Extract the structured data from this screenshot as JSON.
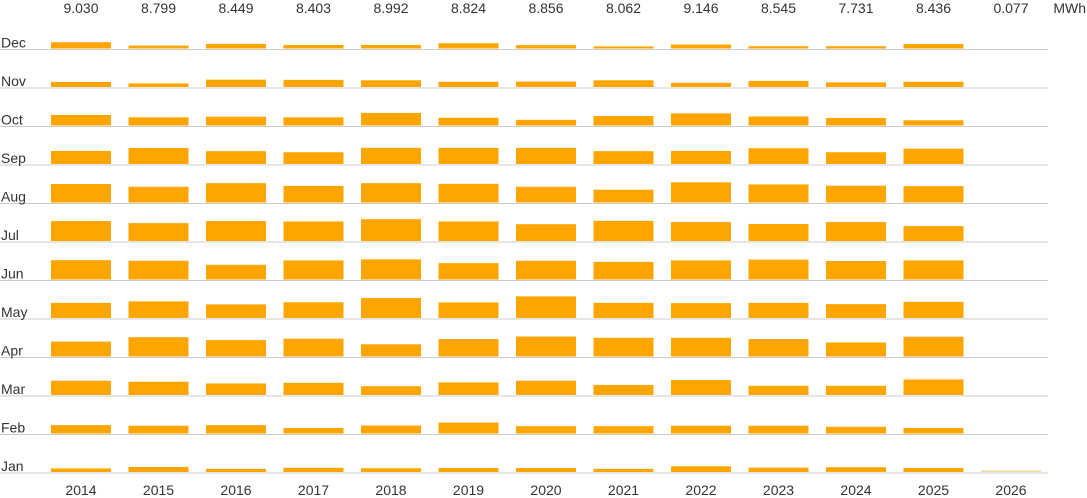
{
  "chart_data": {
    "type": "bar",
    "unit": "MWh",
    "months": [
      "Jan",
      "Feb",
      "Mar",
      "Apr",
      "May",
      "Jun",
      "Jul",
      "Aug",
      "Sep",
      "Oct",
      "Nov",
      "Dec"
    ],
    "years": [
      "2014",
      "2015",
      "2016",
      "2017",
      "2018",
      "2019",
      "2020",
      "2021",
      "2022",
      "2023",
      "2024",
      "2025",
      "2026"
    ],
    "year_totals": [
      "9.030",
      "8.799",
      "8.449",
      "8.403",
      "8.992",
      "8.824",
      "8.856",
      "8.062",
      "9.146",
      "8.545",
      "7.731",
      "8.436",
      "0.077"
    ],
    "series": [
      {
        "month": "Jan",
        "values": [
          0.17,
          0.24,
          0.15,
          0.2,
          0.18,
          0.19,
          0.19,
          0.15,
          0.27,
          0.21,
          0.23,
          0.19,
          0.05
        ]
      },
      {
        "month": "Feb",
        "values": [
          0.4,
          0.37,
          0.4,
          0.26,
          0.38,
          0.52,
          0.35,
          0.35,
          0.37,
          0.37,
          0.32,
          0.26,
          null
        ]
      },
      {
        "month": "Mar",
        "values": [
          0.68,
          0.63,
          0.55,
          0.58,
          0.42,
          0.6,
          0.68,
          0.48,
          0.71,
          0.44,
          0.44,
          0.74,
          null
        ]
      },
      {
        "month": "Apr",
        "values": [
          0.71,
          0.92,
          0.78,
          0.85,
          0.58,
          0.83,
          0.95,
          0.89,
          0.89,
          0.83,
          0.67,
          0.94,
          null
        ]
      },
      {
        "month": "May",
        "values": [
          0.72,
          0.79,
          0.65,
          0.75,
          0.95,
          0.74,
          1.03,
          0.72,
          0.71,
          0.72,
          0.66,
          0.77,
          null
        ]
      },
      {
        "month": "Jun",
        "values": [
          0.92,
          0.89,
          0.7,
          0.91,
          0.96,
          0.78,
          0.89,
          0.84,
          0.91,
          0.95,
          0.88,
          0.91,
          null
        ]
      },
      {
        "month": "Jul",
        "values": [
          0.95,
          0.85,
          0.95,
          0.93,
          1.04,
          0.93,
          0.8,
          0.96,
          0.9,
          0.81,
          0.9,
          0.71,
          null
        ]
      },
      {
        "month": "Aug",
        "values": [
          0.88,
          0.75,
          0.92,
          0.79,
          0.92,
          0.89,
          0.75,
          0.61,
          0.96,
          0.86,
          0.8,
          0.78,
          null
        ]
      },
      {
        "month": "Sep",
        "values": [
          0.62,
          0.76,
          0.61,
          0.56,
          0.77,
          0.77,
          0.77,
          0.61,
          0.62,
          0.75,
          0.56,
          0.73,
          null
        ]
      },
      {
        "month": "Oct",
        "values": [
          0.5,
          0.39,
          0.42,
          0.39,
          0.6,
          0.37,
          0.27,
          0.45,
          0.58,
          0.43,
          0.36,
          0.25,
          null
        ]
      },
      {
        "month": "Nov",
        "values": [
          0.24,
          0.17,
          0.35,
          0.34,
          0.32,
          0.25,
          0.26,
          0.32,
          0.2,
          0.29,
          0.22,
          0.25,
          null
        ]
      },
      {
        "month": "Dec",
        "values": [
          0.3,
          0.14,
          0.22,
          0.17,
          0.17,
          0.25,
          0.16,
          0.1,
          0.19,
          0.11,
          0.11,
          0.21,
          null
        ]
      }
    ],
    "grid": true,
    "colors": {
      "bar": "#FFA500",
      "bar_light": "#F6D596",
      "grid": "#CCCCCC",
      "text": "#333333"
    }
  }
}
